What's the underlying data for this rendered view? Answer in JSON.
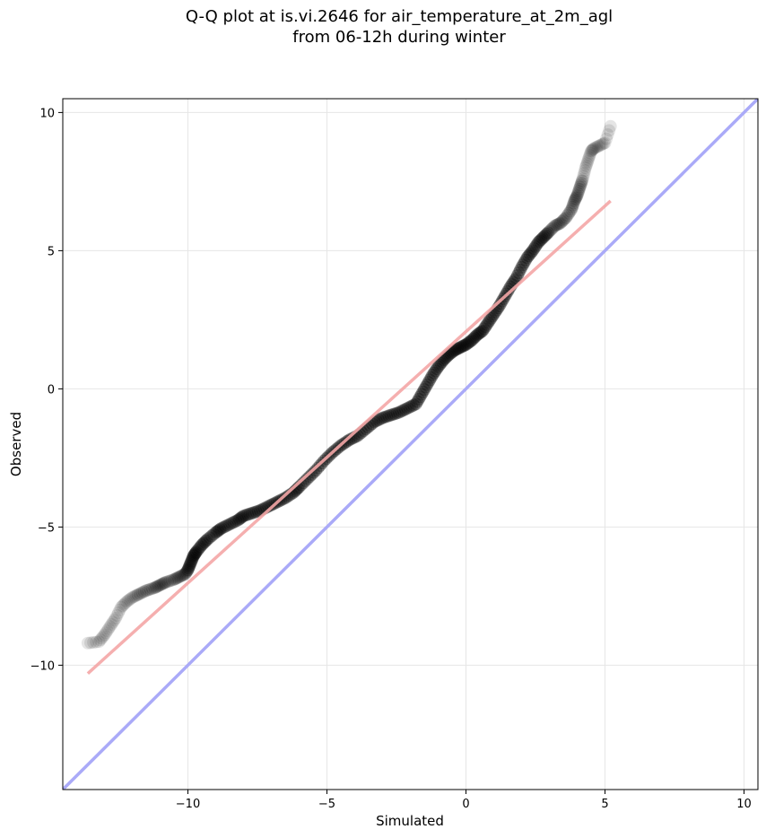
{
  "chart_data": {
    "type": "scatter",
    "title": [
      "Q-Q plot at is.vi.2646 for air_temperature_at_2m_agl",
      "from 06-12h during winter"
    ],
    "xlabel": "Simulated",
    "ylabel": "Observed",
    "xlim": [
      -14.5,
      10.5
    ],
    "ylim": [
      -14.5,
      10.5
    ],
    "xticks": [
      -10,
      -5,
      0,
      5,
      10
    ],
    "xtick_labels": [
      "−10",
      "−5",
      "0",
      "5",
      "10"
    ],
    "yticks": [
      -10,
      -5,
      0,
      5,
      10
    ],
    "ytick_labels": [
      "−10",
      "−5",
      "0",
      "5",
      "10"
    ],
    "grid": true,
    "colors": {
      "points": "#000000",
      "fit_line": "#f4a6a6",
      "identity_line": "#aaaaf8",
      "grid": "#e6e6e6"
    },
    "quantile_points": {
      "x": [
        -13.6,
        -13.2,
        -13.0,
        -12.8,
        -12.6,
        -12.4,
        -12.2,
        -12.0,
        -11.8,
        -11.5,
        -11.2,
        -11.0,
        -10.8,
        -10.5,
        -10.3,
        -10.1,
        -10.0,
        -9.9,
        -9.8,
        -9.7,
        -9.5,
        -9.3,
        -9.0,
        -8.8,
        -8.5,
        -8.2,
        -8.0,
        -7.7,
        -7.4,
        -7.1,
        -6.8,
        -6.5,
        -6.2,
        -6.0,
        -5.7,
        -5.4,
        -5.1,
        -4.8,
        -4.5,
        -4.2,
        -3.9,
        -3.6,
        -3.3,
        -3.0,
        -2.7,
        -2.4,
        -2.1,
        -1.8,
        -1.6,
        -1.4,
        -1.2,
        -1.0,
        -0.8,
        -0.6,
        -0.4,
        -0.2,
        0.0,
        0.2,
        0.4,
        0.6,
        0.8,
        1.0,
        1.2,
        1.4,
        1.6,
        1.8,
        2.0,
        2.2,
        2.4,
        2.6,
        2.8,
        3.0,
        3.2,
        3.4,
        3.6,
        3.8,
        3.9,
        4.0,
        4.1,
        4.2,
        4.3,
        4.4,
        4.5,
        4.6,
        4.8,
        5.0,
        5.2
      ],
      "y": [
        -9.2,
        -9.15,
        -8.9,
        -8.6,
        -8.3,
        -7.9,
        -7.7,
        -7.55,
        -7.45,
        -7.3,
        -7.2,
        -7.1,
        -7.0,
        -6.9,
        -6.8,
        -6.7,
        -6.55,
        -6.3,
        -6.05,
        -5.9,
        -5.65,
        -5.45,
        -5.2,
        -5.05,
        -4.9,
        -4.75,
        -4.6,
        -4.5,
        -4.4,
        -4.25,
        -4.1,
        -3.95,
        -3.75,
        -3.55,
        -3.25,
        -2.95,
        -2.6,
        -2.3,
        -2.05,
        -1.85,
        -1.7,
        -1.45,
        -1.2,
        -1.05,
        -0.95,
        -0.85,
        -0.7,
        -0.55,
        -0.2,
        0.15,
        0.5,
        0.8,
        1.05,
        1.25,
        1.4,
        1.5,
        1.6,
        1.75,
        1.95,
        2.1,
        2.4,
        2.7,
        3.0,
        3.35,
        3.7,
        4.0,
        4.4,
        4.75,
        5.0,
        5.3,
        5.5,
        5.7,
        5.9,
        6.0,
        6.2,
        6.5,
        6.8,
        7.0,
        7.3,
        7.6,
        8.0,
        8.3,
        8.6,
        8.7,
        8.8,
        8.9,
        9.5
      ]
    },
    "fit_line": {
      "x": [
        -13.6,
        5.2
      ],
      "y": [
        -10.3,
        6.8
      ]
    },
    "identity_line": {
      "x": [
        -14.5,
        10.5
      ],
      "y": [
        -14.5,
        10.5
      ]
    }
  }
}
